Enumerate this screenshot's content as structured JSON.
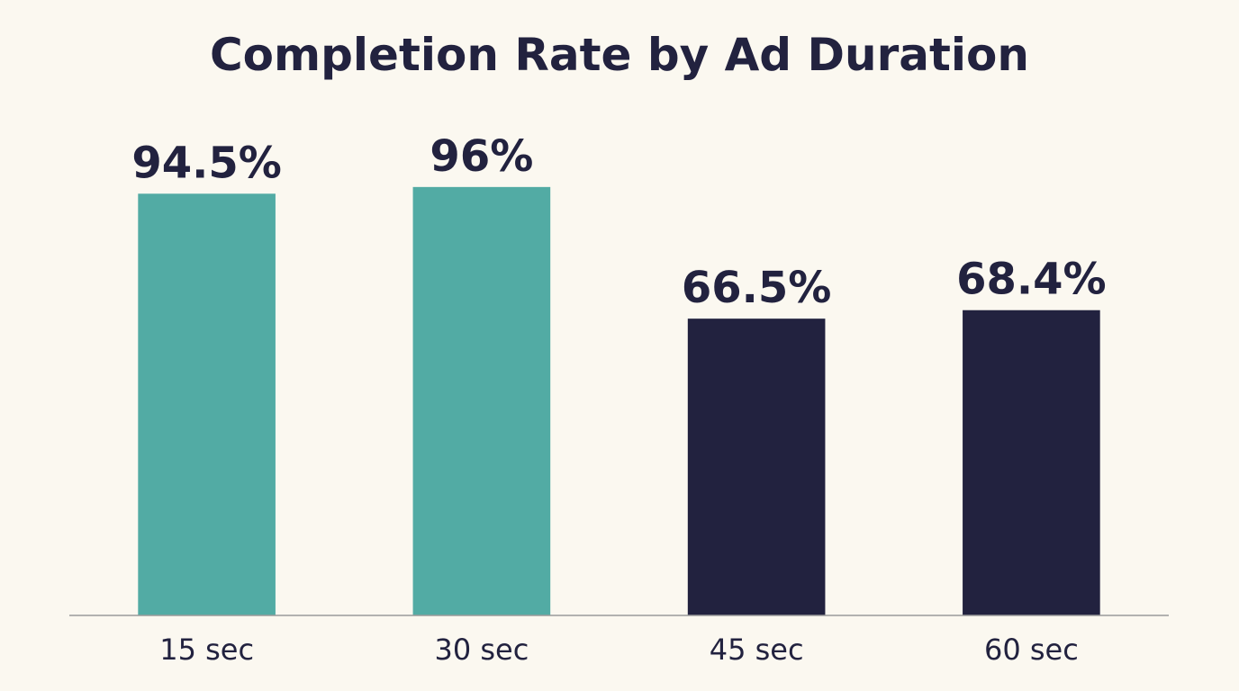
{
  "chart_data": {
    "type": "bar",
    "title": "Completion Rate by Ad Duration",
    "xlabel": "",
    "ylabel": "",
    "categories": [
      "15 sec",
      "30 sec",
      "45 sec",
      "60 sec"
    ],
    "values": [
      94.5,
      96,
      66.5,
      68.4
    ],
    "value_labels": [
      "94.5%",
      "96%",
      "66.5%",
      "68.4%"
    ],
    "bar_colors": [
      "#52ABA4",
      "#52ABA4",
      "#22223F",
      "#22223F"
    ],
    "ylim": [
      0,
      100
    ],
    "grid": false,
    "legend": "none"
  }
}
